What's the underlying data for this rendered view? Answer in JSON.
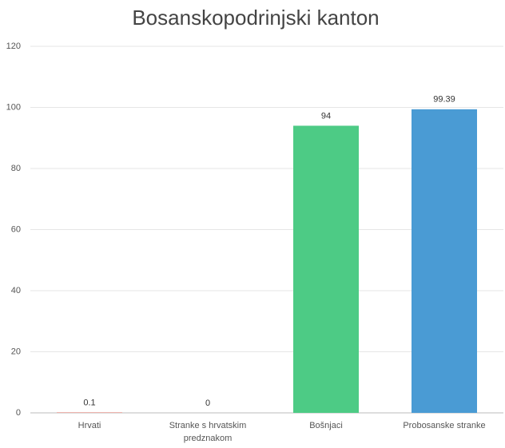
{
  "chart_data": {
    "type": "bar",
    "title": "Bosanskopodrinjski kanton",
    "categories": [
      "Hrvati",
      "Stranke s hrvatskim predznakom",
      "Bošnjaci",
      "Probosanske stranke"
    ],
    "values": [
      0.1,
      0,
      94,
      99.39
    ],
    "colors": [
      "#e8503f",
      "#f0a030",
      "#4dcb85",
      "#4a9bd4"
    ],
    "ylim": [
      0,
      120
    ],
    "yticks": [
      0,
      20,
      40,
      60,
      80,
      100,
      120
    ],
    "grid": true
  }
}
